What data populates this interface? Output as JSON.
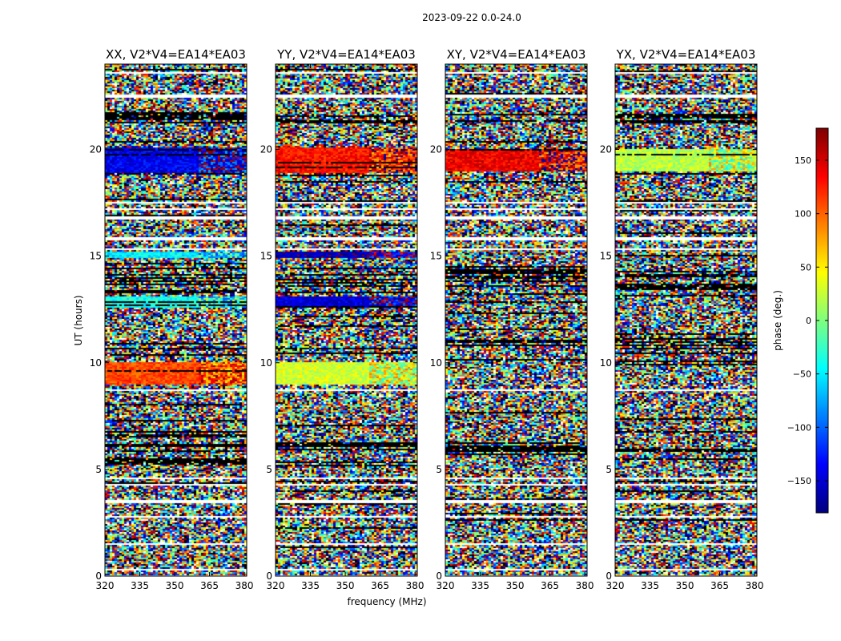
{
  "chart_data": {
    "type": "heatmap",
    "suptitle": "2023-09-22 0.0-24.0",
    "xlabel": "frequency (MHz)",
    "ylabel": "UT (hours)",
    "xlim": [
      320,
      381
    ],
    "ylim": [
      0,
      24
    ],
    "xticks": [
      320,
      335,
      350,
      365,
      380
    ],
    "yticks": [
      0,
      5,
      10,
      15,
      20
    ],
    "panels": [
      {
        "title": "XX, V2*V4=EA14*EA03",
        "pol": "XX",
        "features": [
          {
            "t0": 18.9,
            "t1": 20.1,
            "phase": -140
          },
          {
            "t0": 9.0,
            "t1": 10.0,
            "phase": 110
          },
          {
            "t0": 12.6,
            "t1": 13.1,
            "phase": -40
          },
          {
            "t0": 14.9,
            "t1": 15.2,
            "phase": -50
          }
        ]
      },
      {
        "title": "YY, V2*V4=EA14*EA03",
        "pol": "YY",
        "features": [
          {
            "t0": 18.9,
            "t1": 20.1,
            "phase": 130
          },
          {
            "t0": 9.0,
            "t1": 10.0,
            "phase": 30
          },
          {
            "t0": 12.6,
            "t1": 13.1,
            "phase": -150
          },
          {
            "t0": 14.9,
            "t1": 15.2,
            "phase": -160
          }
        ]
      },
      {
        "title": "XY, V2*V4=EA14*EA03",
        "pol": "XY",
        "features": [
          {
            "t0": 19.0,
            "t1": 20.0,
            "phase": 140
          }
        ]
      },
      {
        "title": "YX, V2*V4=EA14*EA03",
        "pol": "YX",
        "features": [
          {
            "t0": 19.0,
            "t1": 20.0,
            "phase": 20
          }
        ]
      }
    ],
    "colorbar": {
      "label": "phase (deg.)",
      "vmin": -180,
      "vmax": 180,
      "ticks": [
        150,
        100,
        50,
        0,
        -50,
        -100,
        -150
      ],
      "colormap": "jet"
    },
    "flagged_times": [
      0.3,
      1.5,
      2.8,
      3.5,
      4.3,
      4.6,
      8.7,
      15.3,
      15.8,
      16.8,
      17.2,
      17.5,
      22.5,
      23.6
    ],
    "dense_black_bands": [
      [
        13.1,
        14.5
      ],
      [
        21.1,
        21.8
      ],
      [
        10.1,
        11.0
      ],
      [
        5.2,
        6.8
      ]
    ]
  }
}
